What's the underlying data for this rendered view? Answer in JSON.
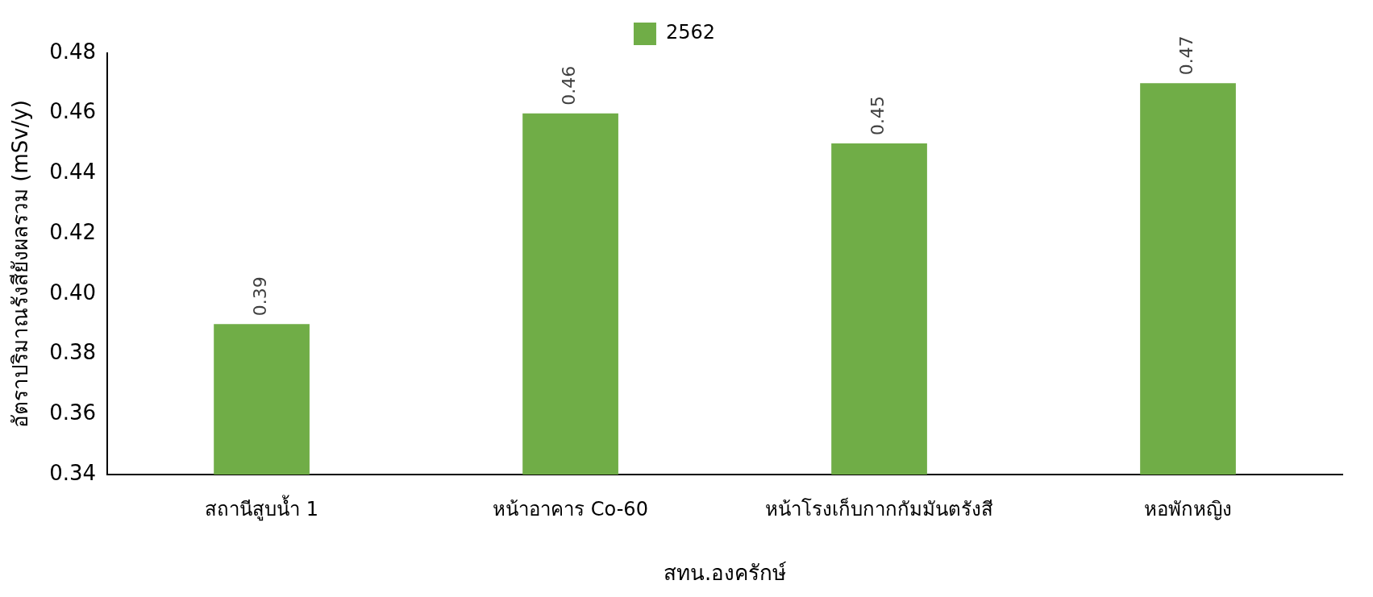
{
  "chart_data": {
    "type": "bar",
    "xlabel": "สทน.องครักษ์",
    "ylabel": "อัตราปริมาณรังสียังผลรวม (mSv/y)",
    "categories": [
      "สถานีสูบน้ำ 1",
      "หน้าอาคาร Co-60",
      "หน้าโรงเก็บกากกัมมันตรังสี",
      "หอพักหญิง"
    ],
    "series": [
      {
        "name": "2562",
        "color": "#70ad47",
        "values": [
          0.39,
          0.46,
          0.45,
          0.47
        ]
      }
    ],
    "ylim": [
      0.34,
      0.48
    ],
    "yticks": [
      0.34,
      0.36,
      0.38,
      {
        "value": 0.4,
        "label": "0.40"
      },
      0.42,
      0.44,
      0.46,
      0.48
    ],
    "grid": false,
    "legend": "top",
    "data_labels": true
  }
}
